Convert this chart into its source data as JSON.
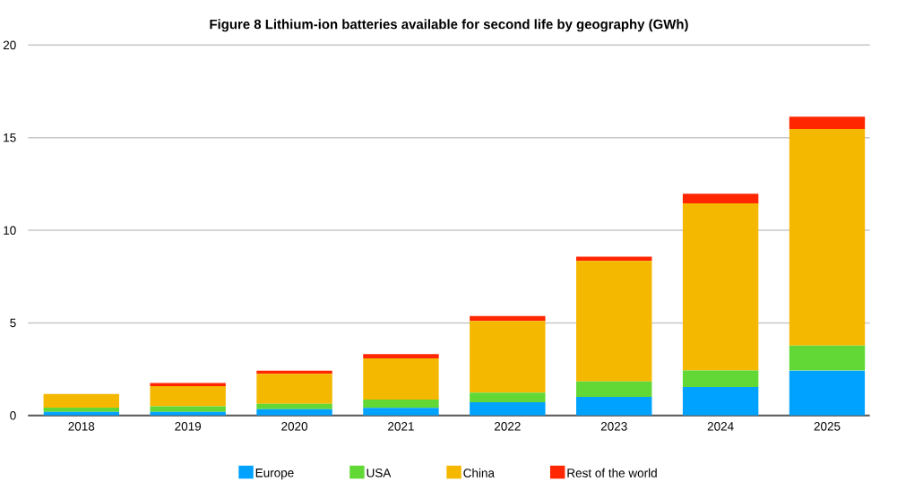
{
  "chart_data": {
    "type": "bar",
    "stacked": true,
    "title": "Figure 8 Lithium-ion batteries available for second life by geography (GWh)",
    "categories": [
      "2018",
      "2019",
      "2020",
      "2021",
      "2022",
      "2023",
      "2024",
      "2025"
    ],
    "series": [
      {
        "name": "Europe",
        "color": "#00a2ff",
        "values": [
          0.19,
          0.19,
          0.34,
          0.41,
          0.72,
          1.01,
          1.54,
          2.43
        ]
      },
      {
        "name": "USA",
        "color": "#61d836",
        "values": [
          0.23,
          0.31,
          0.29,
          0.45,
          0.51,
          0.83,
          0.89,
          1.34
        ]
      },
      {
        "name": "China",
        "color": "#f5b800",
        "values": [
          0.74,
          1.09,
          1.62,
          2.22,
          3.88,
          6.51,
          9.03,
          11.7
        ]
      },
      {
        "name": "Rest of the world",
        "color": "#ff2600",
        "values": [
          0,
          0.16,
          0.17,
          0.23,
          0.26,
          0.23,
          0.52,
          0.67
        ]
      }
    ],
    "ylim": [
      0,
      20
    ],
    "yticks": [
      0,
      5,
      10,
      15,
      20
    ],
    "grid": "y",
    "legend": "bottom"
  }
}
